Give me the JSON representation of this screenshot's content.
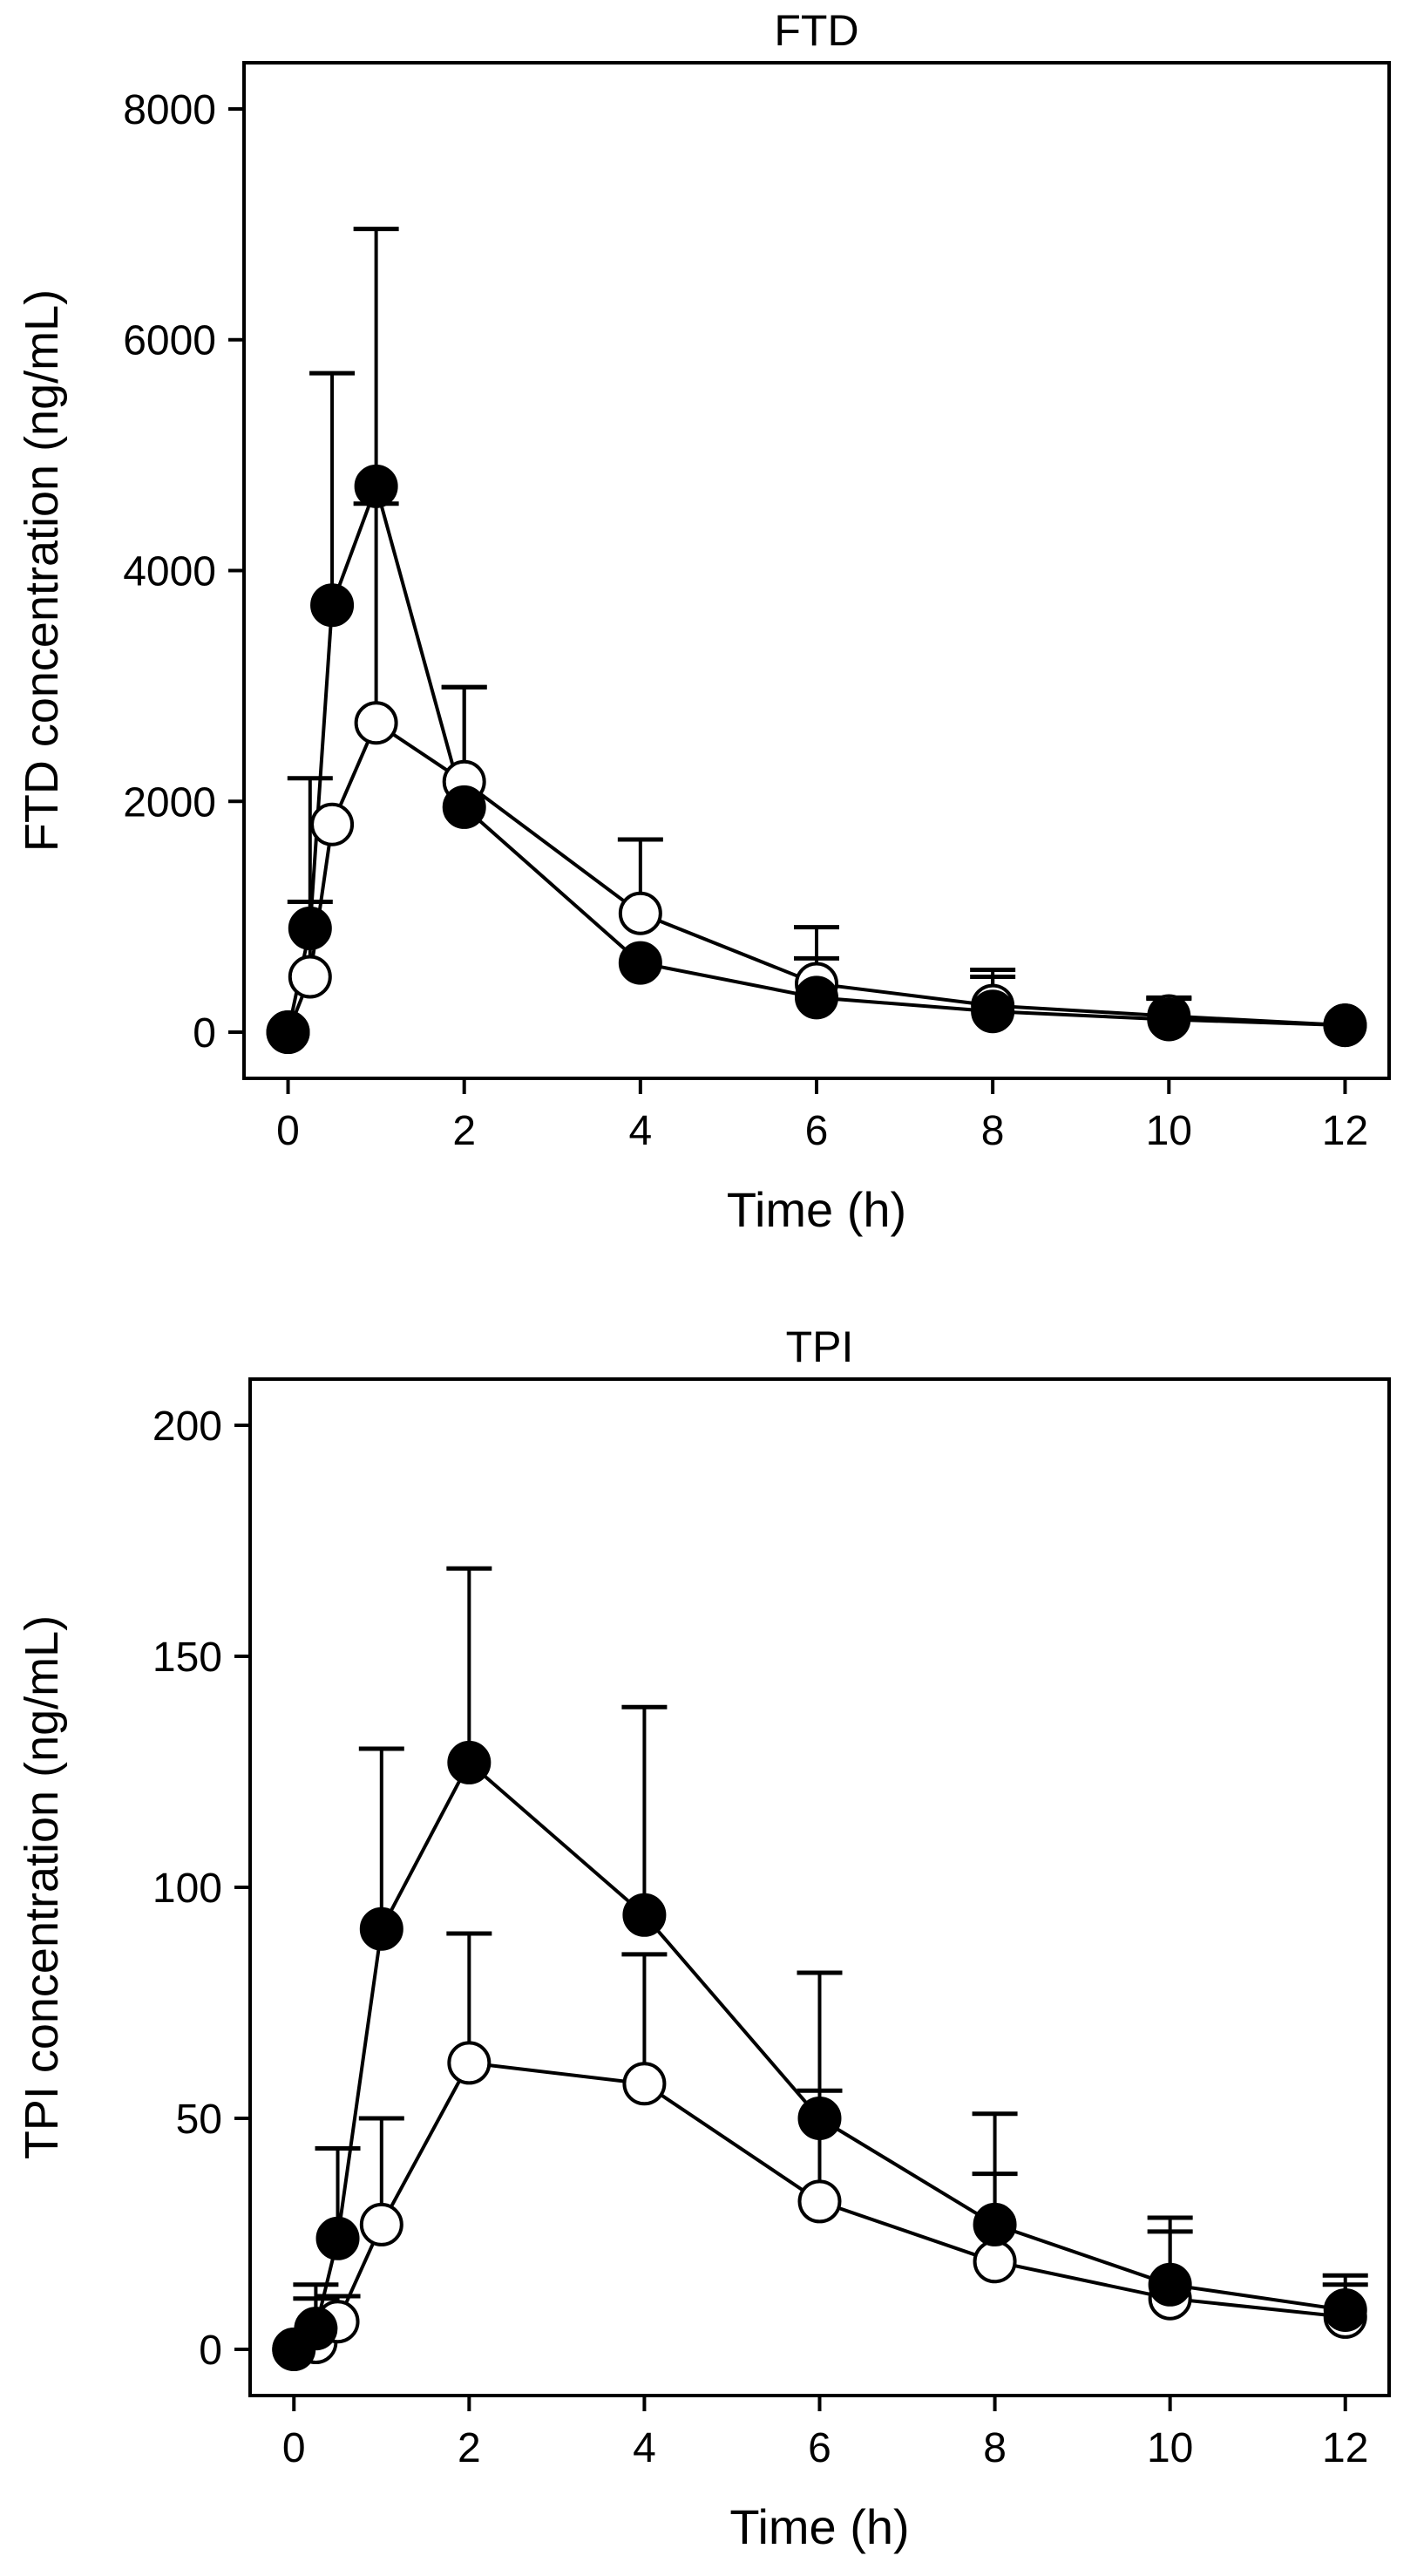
{
  "chart_data": [
    {
      "type": "line",
      "title": "FTD",
      "xlabel": "Time (h)",
      "ylabel": "FTD concentration (ng/mL)",
      "xlim": [
        -0.5,
        12.5
      ],
      "ylim": [
        -400,
        8400
      ],
      "xticks": [
        0,
        2,
        4,
        6,
        8,
        10,
        12
      ],
      "yticks": [
        0,
        2000,
        4000,
        6000,
        8000
      ],
      "xtick_labels": [
        "0",
        "2",
        "4",
        "6",
        "8",
        "10",
        "12"
      ],
      "ytick_labels": [
        "0",
        "2000",
        "4000",
        "6000",
        "8000"
      ],
      "legend": "none",
      "grid": false,
      "series": [
        {
          "marker": "filled-circle",
          "x": [
            0,
            0.25,
            0.5,
            1,
            2,
            4,
            6,
            8,
            10,
            12
          ],
          "y": [
            0,
            900,
            3700,
            4730,
            1950,
            600,
            300,
            180,
            110,
            60
          ],
          "error_upper": [
            null,
            1130,
            5710,
            6960,
            2990,
            600,
            640,
            480,
            290,
            60
          ]
        },
        {
          "marker": "open-circle",
          "x": [
            0,
            0.25,
            0.5,
            1,
            2,
            4,
            6,
            8,
            10,
            12
          ],
          "y": [
            0,
            480,
            1800,
            2680,
            2170,
            1030,
            420,
            230,
            140,
            60
          ],
          "error_upper": [
            null,
            2200,
            1800,
            4580,
            2990,
            1670,
            910,
            540,
            300,
            60
          ]
        }
      ]
    },
    {
      "type": "line",
      "title": "TPI",
      "xlabel": "Time (h)",
      "ylabel": "TPI concentration (ng/mL)",
      "xlim": [
        -0.5,
        12.5
      ],
      "ylim": [
        -10,
        210
      ],
      "xticks": [
        0,
        2,
        4,
        6,
        8,
        10,
        12
      ],
      "yticks": [
        0,
        50,
        100,
        150,
        200
      ],
      "xtick_labels": [
        "0",
        "2",
        "4",
        "6",
        "8",
        "10",
        "12"
      ],
      "ytick_labels": [
        "0",
        "50",
        "100",
        "150",
        "200"
      ],
      "legend": "none",
      "grid": false,
      "series": [
        {
          "marker": "filled-circle",
          "x": [
            0,
            0.25,
            0.5,
            1,
            2,
            4,
            6,
            8,
            10,
            12
          ],
          "y": [
            0,
            4.5,
            24,
            91,
            127,
            94,
            50,
            27,
            14,
            8.5
          ],
          "error_upper": [
            null,
            14,
            43.5,
            130,
            169,
            139,
            81.5,
            51,
            28.5,
            16
          ]
        },
        {
          "marker": "open-circle",
          "x": [
            0,
            0.25,
            0.5,
            1,
            2,
            4,
            6,
            8,
            10,
            12
          ],
          "y": [
            0,
            1.5,
            6,
            27,
            62,
            57.5,
            32,
            19,
            11,
            7
          ],
          "error_upper": [
            null,
            11,
            11.5,
            50,
            90,
            85.5,
            56,
            38,
            25.5,
            14
          ]
        }
      ]
    }
  ]
}
